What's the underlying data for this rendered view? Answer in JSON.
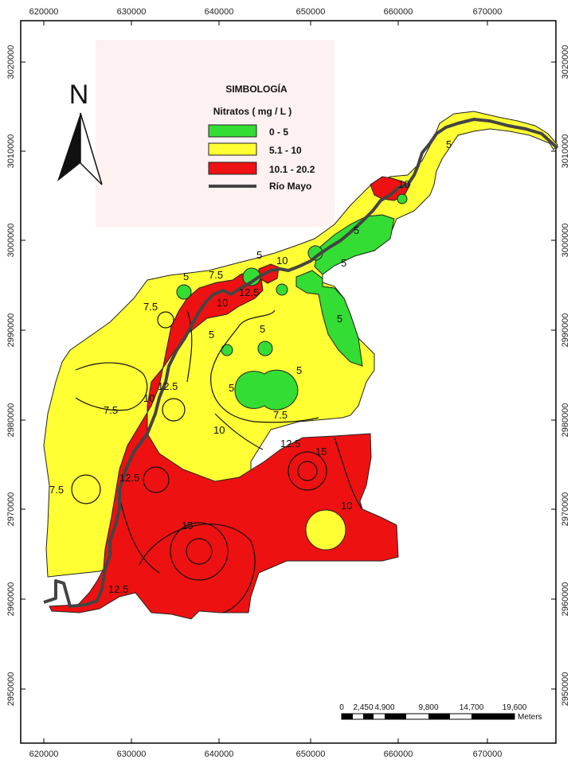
{
  "map": {
    "x_ticks": [
      "620000",
      "630000",
      "640000",
      "650000",
      "660000",
      "670000"
    ],
    "y_ticks": [
      "3020000",
      "3010000",
      "3000000",
      "2990000",
      "2980000",
      "2970000",
      "2960000",
      "2950000"
    ],
    "north_label": "N",
    "contour_labels": [
      "5",
      "5",
      "5",
      "5",
      "5",
      "5",
      "5",
      "5",
      "5",
      "7.5",
      "7.5",
      "7.5",
      "7.5",
      "7.5",
      "10",
      "10",
      "10",
      "10",
      "10",
      "12.5",
      "12.5",
      "12.5",
      "12.5",
      "12.5",
      "15",
      "15",
      "5",
      "10"
    ]
  },
  "legend": {
    "title": "SIMBOLOGÍA",
    "subtitle": "Nitratos ( mg / L )",
    "items": [
      {
        "label": "0 - 5",
        "color": "#33dd33"
      },
      {
        "label": "5.1 - 10",
        "color": "#ffff33"
      },
      {
        "label": "10.1 - 20.2",
        "color": "#ee1111"
      },
      {
        "label": "Río Mayo",
        "color": "#444444"
      }
    ]
  },
  "scale_bar": {
    "labels": [
      "0",
      "2,450",
      "4,900",
      "9,800",
      "14,700",
      "19,600"
    ],
    "unit": "Meters"
  }
}
